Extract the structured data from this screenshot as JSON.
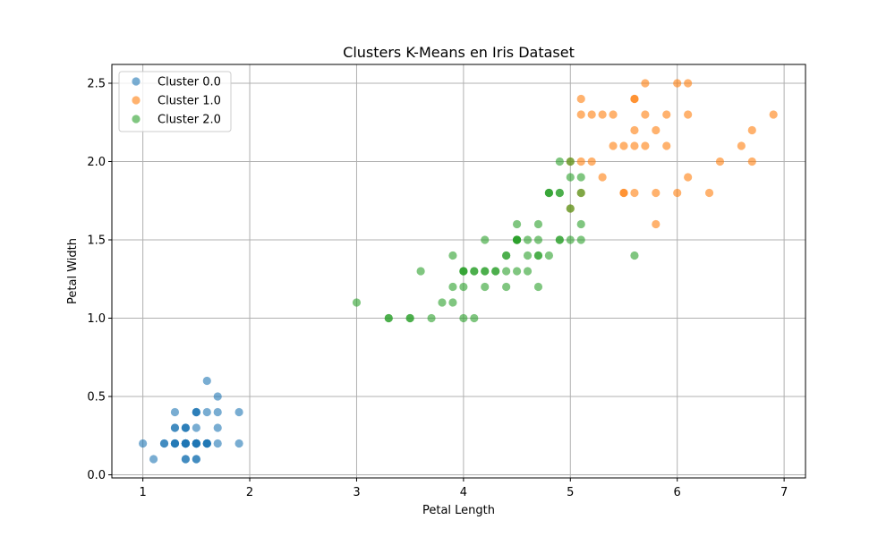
{
  "chart_data": {
    "type": "scatter",
    "title": "Clusters K-Means en Iris Dataset",
    "xlabel": "Petal Length",
    "ylabel": "Petal Width",
    "xlim": [
      0.71,
      7.2
    ],
    "ylim": [
      -0.02,
      2.62
    ],
    "xticks": [
      1,
      2,
      3,
      4,
      5,
      6,
      7
    ],
    "yticks": [
      0.0,
      0.5,
      1.0,
      1.5,
      2.0,
      2.5
    ],
    "xtick_labels": [
      "1",
      "2",
      "3",
      "4",
      "5",
      "6",
      "7"
    ],
    "ytick_labels": [
      "0.0",
      "0.5",
      "1.0",
      "1.5",
      "2.0",
      "2.5"
    ],
    "grid": true,
    "legend_position": "top-left",
    "series": [
      {
        "name": "Cluster 0.0",
        "color": "#1f77b4",
        "points": [
          [
            1.4,
            0.2
          ],
          [
            1.4,
            0.2
          ],
          [
            1.3,
            0.2
          ],
          [
            1.5,
            0.2
          ],
          [
            1.4,
            0.2
          ],
          [
            1.7,
            0.4
          ],
          [
            1.4,
            0.3
          ],
          [
            1.5,
            0.2
          ],
          [
            1.4,
            0.2
          ],
          [
            1.5,
            0.1
          ],
          [
            1.5,
            0.2
          ],
          [
            1.6,
            0.2
          ],
          [
            1.4,
            0.1
          ],
          [
            1.1,
            0.1
          ],
          [
            1.2,
            0.2
          ],
          [
            1.5,
            0.4
          ],
          [
            1.3,
            0.4
          ],
          [
            1.4,
            0.3
          ],
          [
            1.7,
            0.3
          ],
          [
            1.5,
            0.3
          ],
          [
            1.7,
            0.2
          ],
          [
            1.5,
            0.4
          ],
          [
            1.0,
            0.2
          ],
          [
            1.7,
            0.5
          ],
          [
            1.9,
            0.2
          ],
          [
            1.6,
            0.2
          ],
          [
            1.6,
            0.4
          ],
          [
            1.5,
            0.2
          ],
          [
            1.4,
            0.2
          ],
          [
            1.6,
            0.2
          ],
          [
            1.6,
            0.2
          ],
          [
            1.5,
            0.4
          ],
          [
            1.5,
            0.1
          ],
          [
            1.4,
            0.2
          ],
          [
            1.5,
            0.2
          ],
          [
            1.2,
            0.2
          ],
          [
            1.3,
            0.2
          ],
          [
            1.4,
            0.1
          ],
          [
            1.3,
            0.2
          ],
          [
            1.5,
            0.2
          ],
          [
            1.3,
            0.3
          ],
          [
            1.3,
            0.3
          ],
          [
            1.3,
            0.2
          ],
          [
            1.6,
            0.6
          ],
          [
            1.9,
            0.4
          ],
          [
            1.4,
            0.3
          ],
          [
            1.6,
            0.2
          ],
          [
            1.4,
            0.2
          ],
          [
            1.5,
            0.2
          ],
          [
            1.4,
            0.2
          ]
        ]
      },
      {
        "name": "Cluster 1.0",
        "color": "#ff7f0e",
        "points": [
          [
            5.0,
            1.7
          ],
          [
            6.0,
            2.5
          ],
          [
            5.9,
            2.1
          ],
          [
            5.6,
            1.8
          ],
          [
            5.8,
            2.2
          ],
          [
            6.6,
            2.1
          ],
          [
            6.3,
            1.8
          ],
          [
            5.8,
            1.8
          ],
          [
            6.1,
            2.5
          ],
          [
            5.1,
            2.0
          ],
          [
            5.3,
            1.9
          ],
          [
            5.5,
            2.1
          ],
          [
            5.0,
            2.0
          ],
          [
            5.1,
            2.4
          ],
          [
            5.3,
            2.3
          ],
          [
            5.5,
            1.8
          ],
          [
            6.7,
            2.2
          ],
          [
            6.9,
            2.3
          ],
          [
            5.7,
            2.3
          ],
          [
            6.7,
            2.0
          ],
          [
            5.7,
            2.1
          ],
          [
            6.0,
            1.8
          ],
          [
            5.6,
            2.1
          ],
          [
            5.8,
            1.6
          ],
          [
            6.1,
            1.9
          ],
          [
            6.4,
            2.0
          ],
          [
            5.6,
            2.2
          ],
          [
            6.1,
            2.3
          ],
          [
            5.6,
            2.4
          ],
          [
            5.5,
            1.8
          ],
          [
            5.4,
            2.1
          ],
          [
            5.6,
            2.4
          ],
          [
            5.1,
            2.3
          ],
          [
            5.9,
            2.3
          ],
          [
            5.7,
            2.5
          ],
          [
            5.2,
            2.3
          ],
          [
            5.2,
            2.0
          ],
          [
            5.4,
            2.3
          ],
          [
            5.1,
            1.8
          ]
        ]
      },
      {
        "name": "Cluster 2.0",
        "color": "#2ca02c",
        "points": [
          [
            4.7,
            1.4
          ],
          [
            4.5,
            1.5
          ],
          [
            4.9,
            1.5
          ],
          [
            4.0,
            1.3
          ],
          [
            4.6,
            1.5
          ],
          [
            4.5,
            1.3
          ],
          [
            4.7,
            1.6
          ],
          [
            3.3,
            1.0
          ],
          [
            4.6,
            1.3
          ],
          [
            3.9,
            1.4
          ],
          [
            3.5,
            1.0
          ],
          [
            4.2,
            1.5
          ],
          [
            4.0,
            1.0
          ],
          [
            4.7,
            1.4
          ],
          [
            3.6,
            1.3
          ],
          [
            4.4,
            1.4
          ],
          [
            4.5,
            1.5
          ],
          [
            4.1,
            1.0
          ],
          [
            4.5,
            1.5
          ],
          [
            3.9,
            1.1
          ],
          [
            4.8,
            1.8
          ],
          [
            4.0,
            1.3
          ],
          [
            4.9,
            1.5
          ],
          [
            4.7,
            1.2
          ],
          [
            4.3,
            1.3
          ],
          [
            4.4,
            1.4
          ],
          [
            4.8,
            1.4
          ],
          [
            5.0,
            1.7
          ],
          [
            4.5,
            1.5
          ],
          [
            3.5,
            1.0
          ],
          [
            3.8,
            1.1
          ],
          [
            3.7,
            1.0
          ],
          [
            3.9,
            1.2
          ],
          [
            5.1,
            1.6
          ],
          [
            4.5,
            1.5
          ],
          [
            4.5,
            1.6
          ],
          [
            4.7,
            1.5
          ],
          [
            4.4,
            1.3
          ],
          [
            4.1,
            1.3
          ],
          [
            4.0,
            1.3
          ],
          [
            4.4,
            1.2
          ],
          [
            4.6,
            1.4
          ],
          [
            4.0,
            1.2
          ],
          [
            3.3,
            1.0
          ],
          [
            4.2,
            1.3
          ],
          [
            4.2,
            1.2
          ],
          [
            4.2,
            1.3
          ],
          [
            4.3,
            1.3
          ],
          [
            3.0,
            1.1
          ],
          [
            4.1,
            1.3
          ],
          [
            4.8,
            1.8
          ],
          [
            4.9,
            1.8
          ],
          [
            5.1,
            1.5
          ],
          [
            4.9,
            2.0
          ],
          [
            5.0,
            1.5
          ],
          [
            5.0,
            1.9
          ],
          [
            5.1,
            1.9
          ],
          [
            5.1,
            1.8
          ],
          [
            5.0,
            2.0
          ],
          [
            5.6,
            1.4
          ],
          [
            4.8,
            1.8
          ],
          [
            4.9,
            1.8
          ]
        ]
      }
    ]
  }
}
